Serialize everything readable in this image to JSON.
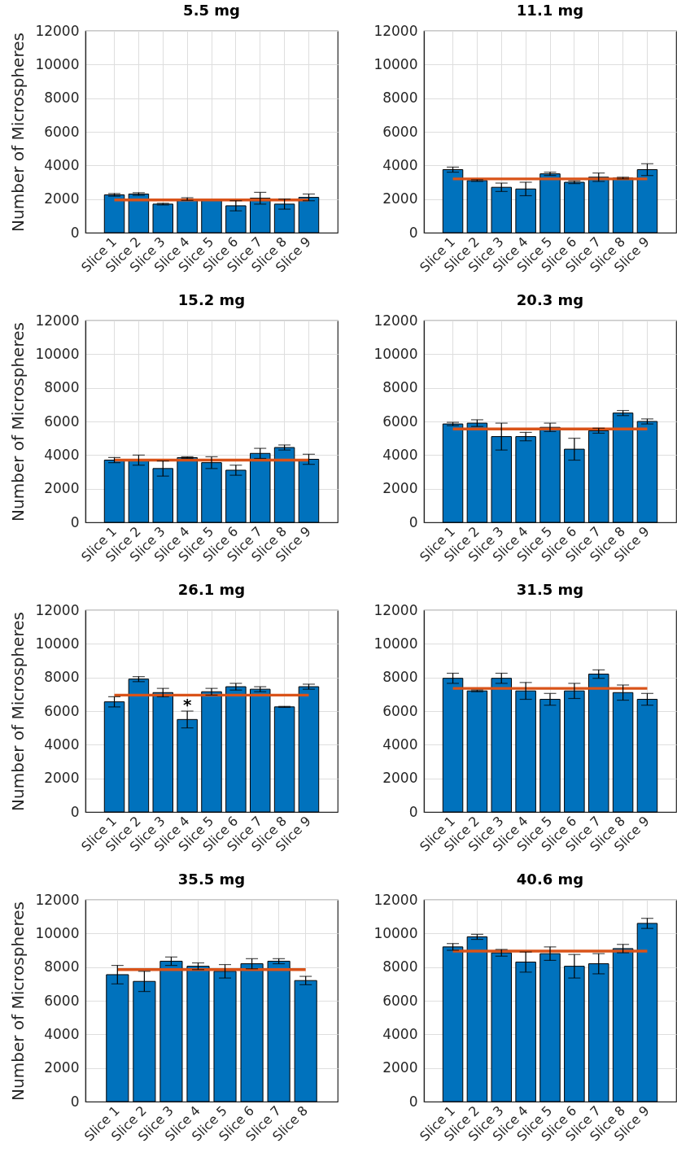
{
  "chart_data": [
    {
      "type": "bar",
      "title": "5.5 mg",
      "ylabel": "Number of Microspheres",
      "categories": [
        "Slice 1",
        "Slice 2",
        "Slice 3",
        "Slice 4",
        "Slice 5",
        "Slice 6",
        "Slice 7",
        "Slice 8",
        "Slice 9"
      ],
      "values": [
        2250,
        2300,
        1700,
        2000,
        1950,
        1600,
        2050,
        1700,
        2100
      ],
      "errors": [
        80,
        80,
        50,
        80,
        null,
        300,
        350,
        300,
        200
      ],
      "color": "#0072bd",
      "ylim": [
        0,
        12000
      ],
      "yticks": [
        0,
        2000,
        4000,
        6000,
        8000,
        10000,
        12000
      ],
      "grid": true,
      "ref_lines": [
        {
          "axis": "y",
          "value": 1950,
          "color": "#d95319"
        }
      ]
    },
    {
      "type": "bar",
      "title": "11.1 mg",
      "categories": [
        "Slice 1",
        "Slice 2",
        "Slice 3",
        "Slice 4",
        "Slice 5",
        "Slice 6",
        "Slice 7",
        "Slice 8",
        "Slice 9"
      ],
      "values": [
        3750,
        3100,
        2700,
        2600,
        3500,
        3000,
        3300,
        3250,
        3750
      ],
      "errors": [
        150,
        50,
        250,
        400,
        100,
        80,
        250,
        50,
        350
      ],
      "color": "#0072bd",
      "ylim": [
        0,
        12000
      ],
      "yticks": [
        0,
        2000,
        4000,
        6000,
        8000,
        10000,
        12000
      ],
      "grid": true,
      "ref_lines": [
        {
          "axis": "y",
          "value": 3200,
          "color": "#d95319"
        }
      ]
    },
    {
      "type": "bar",
      "title": "15.2 mg",
      "ylabel": "Number of Microspheres",
      "categories": [
        "Slice 1",
        "Slice 2",
        "Slice 3",
        "Slice 4",
        "Slice 5",
        "Slice 6",
        "Slice 7",
        "Slice 8",
        "Slice 9"
      ],
      "values": [
        3700,
        3700,
        3200,
        3850,
        3550,
        3100,
        4100,
        4450,
        3750
      ],
      "errors": [
        150,
        300,
        450,
        50,
        350,
        300,
        300,
        150,
        300
      ],
      "color": "#0072bd",
      "ylim": [
        0,
        12000
      ],
      "yticks": [
        0,
        2000,
        4000,
        6000,
        8000,
        10000,
        12000
      ],
      "grid": true,
      "ref_lines": [
        {
          "axis": "y",
          "value": 3700,
          "color": "#d95319"
        }
      ]
    },
    {
      "type": "bar",
      "title": "20.3 mg",
      "categories": [
        "Slice 1",
        "Slice 2",
        "Slice 3",
        "Slice 4",
        "Slice 5",
        "Slice 6",
        "Slice 7",
        "Slice 8",
        "Slice 9"
      ],
      "values": [
        5850,
        5900,
        5100,
        5100,
        5650,
        4350,
        5450,
        6500,
        6000
      ],
      "errors": [
        100,
        200,
        800,
        250,
        250,
        650,
        150,
        150,
        150
      ],
      "color": "#0072bd",
      "ylim": [
        0,
        12000
      ],
      "yticks": [
        0,
        2000,
        4000,
        6000,
        8000,
        10000,
        12000
      ],
      "grid": true,
      "ref_lines": [
        {
          "axis": "y",
          "value": 5550,
          "color": "#d95319"
        }
      ]
    },
    {
      "type": "bar",
      "title": "26.1 mg",
      "ylabel": "Number of Microspheres",
      "categories": [
        "Slice 1",
        "Slice 2",
        "Slice 3",
        "Slice 4",
        "Slice 5",
        "Slice 6",
        "Slice 7",
        "Slice 8",
        "Slice 9"
      ],
      "values": [
        6550,
        7900,
        7100,
        5500,
        7150,
        7450,
        7300,
        6250,
        7450
      ],
      "errors": [
        300,
        150,
        250,
        500,
        200,
        200,
        150,
        30,
        150
      ],
      "color": "#0072bd",
      "ylim": [
        0,
        12000
      ],
      "yticks": [
        0,
        2000,
        4000,
        6000,
        8000,
        10000,
        12000
      ],
      "grid": true,
      "ref_lines": [
        {
          "axis": "y",
          "value": 6950,
          "color": "#d95319"
        }
      ],
      "annotations": [
        {
          "text": "*",
          "x": "Slice 4",
          "y": 5500
        }
      ]
    },
    {
      "type": "bar",
      "title": "31.5 mg",
      "categories": [
        "Slice 1",
        "Slice 2",
        "Slice 3",
        "Slice 4",
        "Slice 5",
        "Slice 6",
        "Slice 7",
        "Slice 8",
        "Slice 9"
      ],
      "values": [
        7950,
        7200,
        7950,
        7200,
        6700,
        7200,
        8200,
        7100,
        6700
      ],
      "errors": [
        300,
        50,
        300,
        500,
        350,
        450,
        250,
        450,
        350
      ],
      "color": "#0072bd",
      "ylim": [
        0,
        12000
      ],
      "yticks": [
        0,
        2000,
        4000,
        6000,
        8000,
        10000,
        12000
      ],
      "grid": true,
      "ref_lines": [
        {
          "axis": "y",
          "value": 7350,
          "color": "#d95319"
        }
      ]
    },
    {
      "type": "bar",
      "title": "35.5 mg",
      "ylabel": "Number of Microspheres",
      "categories": [
        "Slice 1",
        "Slice 2",
        "Slice 3",
        "Slice 4",
        "Slice 5",
        "Slice 6",
        "Slice 7",
        "Slice 8"
      ],
      "values": [
        7550,
        7150,
        8350,
        8050,
        7750,
        8200,
        8350,
        7200
      ],
      "errors": [
        550,
        600,
        250,
        200,
        400,
        300,
        150,
        250
      ],
      "color": "#0072bd",
      "ylim": [
        0,
        12000
      ],
      "yticks": [
        0,
        2000,
        4000,
        6000,
        8000,
        10000,
        12000
      ],
      "grid": true,
      "ref_lines": [
        {
          "axis": "y",
          "value": 7850,
          "color": "#d95319"
        }
      ]
    },
    {
      "type": "bar",
      "title": "40.6 mg",
      "categories": [
        "Slice 1",
        "Slice 2",
        "Slice 3",
        "Slice 4",
        "Slice 5",
        "Slice 6",
        "Slice 7",
        "Slice 8",
        "Slice 9"
      ],
      "values": [
        9200,
        9800,
        8850,
        8300,
        8800,
        8050,
        8200,
        9100,
        10600
      ],
      "errors": [
        200,
        150,
        200,
        600,
        400,
        700,
        600,
        250,
        300
      ],
      "color": "#0072bd",
      "ylim": [
        0,
        12000
      ],
      "yticks": [
        0,
        2000,
        4000,
        6000,
        8000,
        10000,
        12000
      ],
      "grid": true,
      "ref_lines": [
        {
          "axis": "y",
          "value": 8950,
          "color": "#d95319"
        }
      ]
    }
  ]
}
